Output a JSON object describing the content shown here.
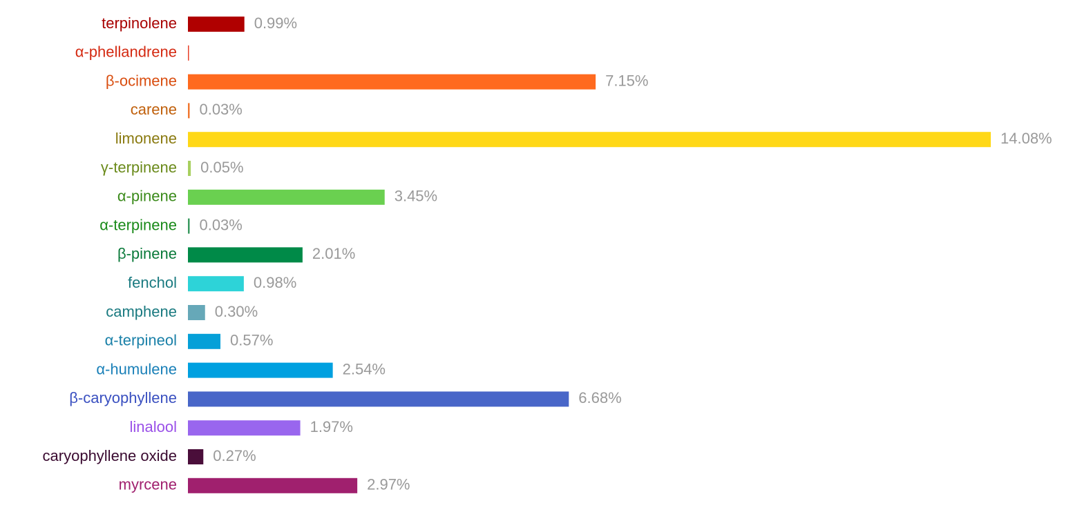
{
  "chart_data": {
    "type": "bar",
    "orientation": "horizontal",
    "categories": [
      "terpinolene",
      "α-phellandrene",
      "β-ocimene",
      "carene",
      "limonene",
      "γ-terpinene",
      "α-pinene",
      "α-terpinene",
      "β-pinene",
      "fenchol",
      "camphene",
      "α-terpineol",
      "α-humulene",
      "β-caryophyllene",
      "linalool",
      "caryophyllene oxide",
      "myrcene"
    ],
    "values": [
      0.99,
      0.01,
      7.15,
      0.03,
      14.08,
      0.05,
      3.45,
      0.03,
      2.01,
      0.98,
      0.3,
      0.57,
      2.54,
      6.68,
      1.97,
      0.27,
      2.97
    ],
    "value_labels": [
      "0.99%",
      null,
      "7.15%",
      "0.03%",
      "14.08%",
      "0.05%",
      "3.45%",
      "0.03%",
      "2.01%",
      "0.98%",
      "0.30%",
      "0.57%",
      "2.54%",
      "6.68%",
      "1.97%",
      "0.27%",
      "2.97%"
    ],
    "colors": [
      "#b00000",
      "#e8402a",
      "#ff6a1f",
      "#f07830",
      "#ffd817",
      "#a8d060",
      "#6ad050",
      "#3a9a60",
      "#008a48",
      "#2dd3d8",
      "#66a8b8",
      "#05a0d8",
      "#00a0e0",
      "#4866c8",
      "#9966ee",
      "#4a0e3a",
      "#a0206e"
    ],
    "label_colors": [
      "#a80000",
      "#d42a12",
      "#d94e10",
      "#c0600c",
      "#8a7a10",
      "#6a8a1a",
      "#3a8a1a",
      "#1a8a1a",
      "#0a7a3a",
      "#1a7a80",
      "#1a7a80",
      "#1a80a8",
      "#1a80b8",
      "#3a50c0",
      "#9a50e8",
      "#3a0a30",
      "#a0206e"
    ],
    "value_label_color": "#999999",
    "xlim": [
      0,
      14.08
    ]
  }
}
